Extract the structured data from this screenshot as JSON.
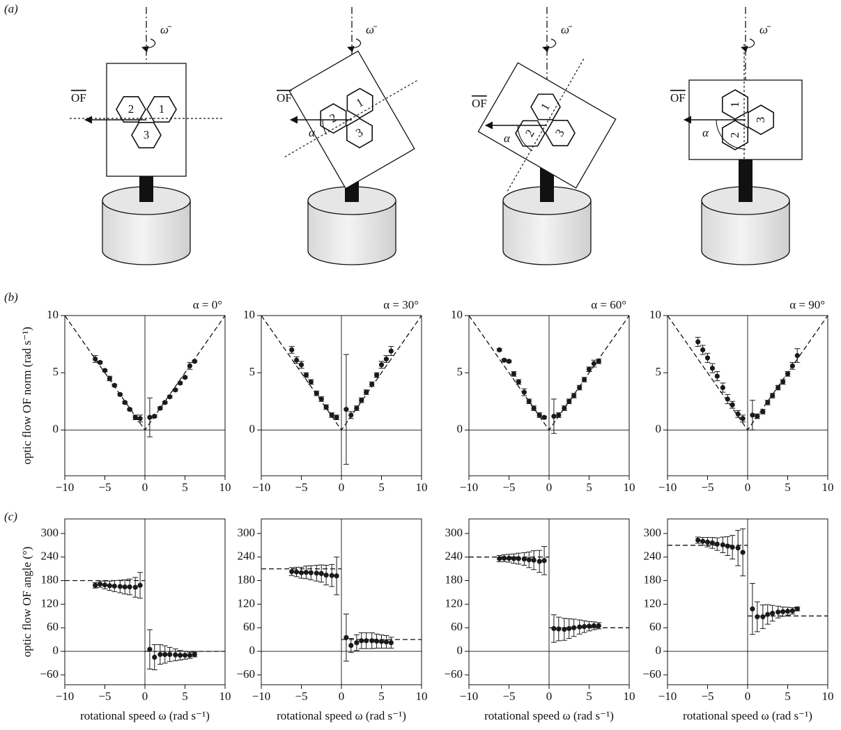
{
  "figure": {
    "panel_labels": [
      "(a)",
      "(b)",
      "(c)"
    ],
    "diagrams": [
      {
        "omega": "ω̄",
        "of": "OF",
        "cells": [
          "1",
          "2",
          "3"
        ]
      },
      {
        "omega": "ω̄",
        "of": "OF",
        "alpha": "α",
        "cells": [
          "1",
          "2",
          "3"
        ]
      },
      {
        "omega": "ω̄",
        "of": "OF",
        "alpha": "α",
        "cells": [
          "1",
          "2",
          "3"
        ]
      },
      {
        "omega": "ω̄",
        "of": "OF",
        "alpha": "α",
        "cells": [
          "1",
          "2",
          "3"
        ]
      }
    ]
  },
  "chart_data": [
    {
      "type": "scatter",
      "title": "α = 0°",
      "ylabel": "optic flow OF norm (rad s⁻¹)",
      "color": "#1a1a1a",
      "xlim": [
        -10,
        10
      ],
      "ylim": [
        -4,
        10
      ],
      "xticks": [
        {
          "value": -10,
          "label": "−10"
        },
        {
          "value": -5,
          "label": "−5"
        },
        0,
        5,
        10
      ],
      "yticks": [
        0,
        5,
        10
      ],
      "x": [
        -6.2,
        -5.6,
        -5,
        -4.4,
        -3.8,
        -3.1,
        -2.5,
        -1.9,
        -1.2,
        -0.6,
        0.6,
        1.2,
        1.9,
        2.5,
        3.1,
        3.8,
        4.4,
        5,
        5.6,
        6.2
      ],
      "values": [
        6.2,
        5.9,
        5.2,
        4.5,
        3.9,
        3.1,
        2.4,
        1.8,
        1.1,
        1.0,
        1.1,
        1.2,
        1.9,
        2.4,
        2.9,
        3.5,
        4.1,
        4.6,
        5.6,
        6.0
      ],
      "errors": [
        0.3,
        0.1,
        0.1,
        0.2,
        0.1,
        0.1,
        0.1,
        0.1,
        0.2,
        0.3,
        1.7,
        0.1,
        0.1,
        0.1,
        0.1,
        0.1,
        0.1,
        0.1,
        0.3,
        0.1
      ],
      "reference": [
        {
          "x": [
            -10,
            0,
            10
          ],
          "y": [
            10,
            0,
            10
          ]
        }
      ]
    },
    {
      "type": "scatter",
      "title": "α = 30°",
      "color": "#1a1a1a",
      "xlim": [
        -10,
        10
      ],
      "ylim": [
        -4,
        10
      ],
      "xticks": [
        {
          "value": -10,
          "label": "−10"
        },
        {
          "value": -5,
          "label": "−5"
        },
        0,
        5,
        10
      ],
      "yticks": [
        0,
        5,
        10
      ],
      "x": [
        -6.2,
        -5.6,
        -5,
        -4.4,
        -3.8,
        -3.1,
        -2.5,
        -1.9,
        -1.2,
        -0.6,
        0.6,
        1.2,
        1.9,
        2.5,
        3.1,
        3.8,
        4.4,
        5,
        5.6,
        6.2
      ],
      "values": [
        7.0,
        6.1,
        5.7,
        4.8,
        4.2,
        3.2,
        2.7,
        2.0,
        1.3,
        1.1,
        1.8,
        1.3,
        1.9,
        2.6,
        3.3,
        4.0,
        4.8,
        5.7,
        6.2,
        6.9
      ],
      "errors": [
        0.3,
        0.3,
        0.3,
        0.2,
        0.2,
        0.2,
        0.2,
        0.2,
        0.2,
        0.2,
        4.8,
        0.3,
        0.2,
        0.2,
        0.2,
        0.2,
        0.2,
        0.3,
        0.3,
        0.4
      ],
      "reference": [
        {
          "x": [
            -10,
            0,
            10
          ],
          "y": [
            10,
            0,
            10
          ]
        }
      ]
    },
    {
      "type": "scatter",
      "title": "α = 60°",
      "color": "#1a1a1a",
      "xlim": [
        -10,
        10
      ],
      "ylim": [
        -4,
        10
      ],
      "xticks": [
        {
          "value": -10,
          "label": "−10"
        },
        {
          "value": -5,
          "label": "−5"
        },
        0,
        5,
        10
      ],
      "yticks": [
        0,
        5,
        10
      ],
      "x": [
        -6.2,
        -5.6,
        -5,
        -4.4,
        -3.8,
        -3.1,
        -2.5,
        -1.9,
        -1.2,
        -0.6,
        0.6,
        1.2,
        1.9,
        2.5,
        3.1,
        3.8,
        4.4,
        5,
        5.6,
        6.2
      ],
      "values": [
        7.0,
        6.1,
        6.0,
        4.9,
        4.2,
        3.3,
        2.5,
        1.9,
        1.3,
        1.1,
        1.2,
        1.3,
        1.9,
        2.5,
        3.0,
        3.7,
        4.4,
        5.3,
        5.8,
        6.0
      ],
      "errors": [
        0.1,
        0.1,
        0.1,
        0.2,
        0.2,
        0.3,
        0.2,
        0.2,
        0.2,
        0.1,
        1.5,
        0.2,
        0.2,
        0.2,
        0.2,
        0.2,
        0.2,
        0.2,
        0.3,
        0.2
      ],
      "reference": [
        {
          "x": [
            -10,
            0,
            10
          ],
          "y": [
            10,
            0,
            10
          ]
        }
      ]
    },
    {
      "type": "scatter",
      "title": "α = 90°",
      "color": "#1a1a1a",
      "xlim": [
        -10,
        10
      ],
      "ylim": [
        -4,
        10
      ],
      "xticks": [
        {
          "value": -10,
          "label": "−10"
        },
        {
          "value": -5,
          "label": "−5"
        },
        0,
        5,
        10
      ],
      "yticks": [
        0,
        5,
        10
      ],
      "x": [
        -6.2,
        -5.6,
        -5,
        -4.4,
        -3.8,
        -3.1,
        -2.5,
        -1.9,
        -1.2,
        -0.6,
        0.6,
        1.2,
        1.9,
        2.5,
        3.1,
        3.8,
        4.4,
        5,
        5.6,
        6.2
      ],
      "values": [
        7.7,
        7.0,
        6.3,
        5.4,
        4.7,
        3.7,
        2.7,
        2.2,
        1.4,
        1.0,
        1.3,
        1.2,
        1.6,
        2.4,
        3.0,
        3.7,
        4.2,
        4.9,
        5.6,
        6.5
      ],
      "errors": [
        0.4,
        0.4,
        0.4,
        0.4,
        0.4,
        0.4,
        0.4,
        0.3,
        0.3,
        0.3,
        1.3,
        0.2,
        0.2,
        0.2,
        0.2,
        0.2,
        0.2,
        0.2,
        0.3,
        0.6
      ],
      "reference": [
        {
          "x": [
            -10,
            0,
            10
          ],
          "y": [
            10,
            0,
            10
          ]
        }
      ]
    },
    {
      "type": "scatter",
      "ylabel": "optic flow OF angle (°)",
      "xlabel": "rotational speed ω (rad s⁻¹)",
      "color": "#1a1a1a",
      "xlim": [
        -10,
        10
      ],
      "ylim": [
        -85,
        337
      ],
      "xticks": [
        {
          "value": -10,
          "label": "−10"
        },
        {
          "value": -5,
          "label": "−5"
        },
        0,
        5,
        10
      ],
      "yticks": [
        {
          "value": -60,
          "label": "−60"
        },
        0,
        60,
        120,
        180,
        240,
        300
      ],
      "x": [
        -6.2,
        -5.6,
        -5,
        -4.4,
        -3.8,
        -3.1,
        -2.5,
        -1.9,
        -1.2,
        -0.6,
        0.6,
        1.2,
        1.9,
        2.5,
        3.1,
        3.8,
        4.4,
        5,
        5.6,
        6.2
      ],
      "values": [
        168,
        171,
        169,
        167,
        166,
        165,
        164,
        164,
        163,
        168,
        5,
        -15,
        -8,
        -8,
        -8,
        -9,
        -10,
        -10,
        -10,
        -8
      ],
      "errors": [
        7,
        8,
        10,
        12,
        14,
        16,
        18,
        20,
        25,
        33,
        50,
        32,
        25,
        22,
        18,
        15,
        12,
        10,
        8,
        6
      ],
      "reference": [
        {
          "x": [
            -10,
            0
          ],
          "y": [
            180,
            180
          ]
        },
        {
          "x": [
            0,
            10
          ],
          "y": [
            0,
            0
          ]
        }
      ]
    },
    {
      "type": "scatter",
      "xlabel": "rotational speed ω (rad s⁻¹)",
      "color": "#1a1a1a",
      "xlim": [
        -10,
        10
      ],
      "ylim": [
        -85,
        337
      ],
      "xticks": [
        {
          "value": -10,
          "label": "−10"
        },
        {
          "value": -5,
          "label": "−5"
        },
        0,
        5,
        10
      ],
      "yticks": [
        {
          "value": -60,
          "label": "−60"
        },
        0,
        60,
        120,
        180,
        240,
        300
      ],
      "x": [
        -6.2,
        -5.6,
        -5,
        -4.4,
        -3.8,
        -3.1,
        -2.5,
        -1.9,
        -1.2,
        -0.6,
        0.6,
        1.2,
        1.9,
        2.5,
        3.1,
        3.8,
        4.4,
        5,
        5.6,
        6.2
      ],
      "values": [
        203,
        202,
        200,
        201,
        200,
        199,
        198,
        194,
        193,
        192,
        35,
        15,
        22,
        27,
        27,
        27,
        26,
        25,
        24,
        22
      ],
      "errors": [
        10,
        12,
        14,
        16,
        18,
        20,
        22,
        25,
        28,
        48,
        60,
        18,
        20,
        20,
        20,
        20,
        18,
        17,
        16,
        14
      ],
      "reference": [
        {
          "x": [
            -10,
            0
          ],
          "y": [
            210,
            210
          ]
        },
        {
          "x": [
            0,
            10
          ],
          "y": [
            30,
            30
          ]
        }
      ]
    },
    {
      "type": "scatter",
      "xlabel": "rotational speed ω (rad s⁻¹)",
      "color": "#1a1a1a",
      "xlim": [
        -10,
        10
      ],
      "ylim": [
        -85,
        337
      ],
      "xticks": [
        {
          "value": -10,
          "label": "−10"
        },
        {
          "value": -5,
          "label": "−5"
        },
        0,
        5,
        10
      ],
      "yticks": [
        {
          "value": -60,
          "label": "−60"
        },
        0,
        60,
        120,
        180,
        240,
        300
      ],
      "x": [
        -6.2,
        -5.6,
        -5,
        -4.4,
        -3.8,
        -3.1,
        -2.5,
        -1.9,
        -1.2,
        -0.6,
        0.6,
        1.2,
        1.9,
        2.5,
        3.1,
        3.8,
        4.4,
        5,
        5.6,
        6.2
      ],
      "values": [
        236,
        237,
        237,
        236,
        236,
        235,
        233,
        232,
        229,
        231,
        58,
        57,
        56,
        58,
        60,
        62,
        63,
        64,
        65,
        65
      ],
      "errors": [
        8,
        9,
        10,
        12,
        14,
        16,
        20,
        24,
        28,
        36,
        35,
        30,
        28,
        25,
        22,
        18,
        15,
        12,
        10,
        8
      ],
      "reference": [
        {
          "x": [
            -10,
            0
          ],
          "y": [
            240,
            240
          ]
        },
        {
          "x": [
            0,
            10
          ],
          "y": [
            60,
            60
          ]
        }
      ]
    },
    {
      "type": "scatter",
      "xlabel": "rotational speed ω (rad s⁻¹)",
      "color": "#1a1a1a",
      "xlim": [
        -10,
        10
      ],
      "ylim": [
        -85,
        337
      ],
      "xticks": [
        {
          "value": -10,
          "label": "−10"
        },
        {
          "value": -5,
          "label": "−5"
        },
        0,
        5,
        10
      ],
      "yticks": [
        {
          "value": -60,
          "label": "−60"
        },
        0,
        60,
        120,
        180,
        240,
        300
      ],
      "x": [
        -6.2,
        -5.6,
        -5,
        -4.4,
        -3.8,
        -3.1,
        -2.5,
        -1.9,
        -1.2,
        -0.6,
        0.6,
        1.2,
        1.9,
        2.5,
        3.1,
        3.8,
        4.4,
        5,
        5.6,
        6.2
      ],
      "values": [
        283,
        280,
        278,
        276,
        273,
        271,
        268,
        265,
        263,
        252,
        108,
        88,
        88,
        94,
        97,
        100,
        101,
        102,
        103,
        108
      ],
      "errors": [
        8,
        10,
        12,
        14,
        16,
        20,
        24,
        30,
        45,
        60,
        65,
        38,
        30,
        25,
        20,
        15,
        12,
        10,
        8,
        5
      ],
      "reference": [
        {
          "x": [
            -10,
            0
          ],
          "y": [
            270,
            270
          ]
        },
        {
          "x": [
            0,
            10
          ],
          "y": [
            90,
            90
          ]
        }
      ]
    }
  ]
}
